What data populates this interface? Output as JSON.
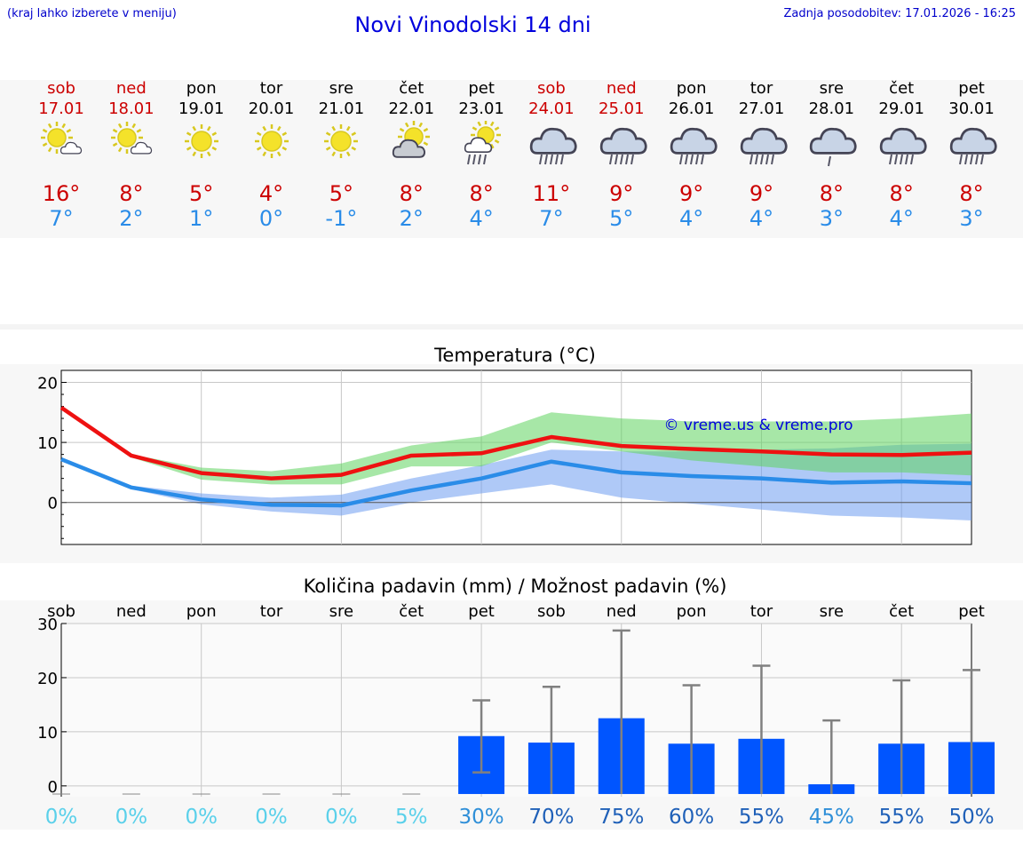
{
  "header": {
    "select_hint": "(kraj lahko izberete v meniju)",
    "title": "Novi Vinodolski 14 dni",
    "updated": "Zadnja posodobitev: 17.01.2026 - 16:25"
  },
  "days": [
    {
      "name": "sob",
      "date": "17.01",
      "weekend": true,
      "icon": "sun-partly-cloudy-icon",
      "tmax": "16°",
      "tmin": "7°"
    },
    {
      "name": "ned",
      "date": "18.01",
      "weekend": true,
      "icon": "sun-partly-cloudy-icon",
      "tmax": "8°",
      "tmin": "2°"
    },
    {
      "name": "pon",
      "date": "19.01",
      "weekend": false,
      "icon": "sun-icon",
      "tmax": "5°",
      "tmin": "1°"
    },
    {
      "name": "tor",
      "date": "20.01",
      "weekend": false,
      "icon": "sun-icon",
      "tmax": "4°",
      "tmin": "0°"
    },
    {
      "name": "sre",
      "date": "21.01",
      "weekend": false,
      "icon": "sun-icon",
      "tmax": "5°",
      "tmin": "-1°"
    },
    {
      "name": "čet",
      "date": "22.01",
      "weekend": false,
      "icon": "partly-cloudy-icon",
      "tmax": "8°",
      "tmin": "2°"
    },
    {
      "name": "pet",
      "date": "23.01",
      "weekend": false,
      "icon": "sun-rain-icon",
      "tmax": "8°",
      "tmin": "4°"
    },
    {
      "name": "sob",
      "date": "24.01",
      "weekend": true,
      "icon": "rain-cloud-icon",
      "tmax": "11°",
      "tmin": "7°"
    },
    {
      "name": "ned",
      "date": "25.01",
      "weekend": true,
      "icon": "rain-cloud-icon",
      "tmax": "9°",
      "tmin": "5°"
    },
    {
      "name": "pon",
      "date": "26.01",
      "weekend": false,
      "icon": "rain-cloud-icon",
      "tmax": "9°",
      "tmin": "4°"
    },
    {
      "name": "tor",
      "date": "27.01",
      "weekend": false,
      "icon": "rain-cloud-icon",
      "tmax": "9°",
      "tmin": "4°"
    },
    {
      "name": "sre",
      "date": "28.01",
      "weekend": false,
      "icon": "light-rain-cloud-icon",
      "tmax": "8°",
      "tmin": "3°"
    },
    {
      "name": "čet",
      "date": "29.01",
      "weekend": false,
      "icon": "rain-cloud-icon",
      "tmax": "8°",
      "tmin": "4°"
    },
    {
      "name": "pet",
      "date": "30.01",
      "weekend": false,
      "icon": "rain-cloud-icon",
      "tmax": "8°",
      "tmin": "3°"
    }
  ],
  "colors": {
    "hot": "#ee1111",
    "cold": "#2a8ce8",
    "green_band": "#5fd35f",
    "blue_band": "#6e9cf0",
    "bar": "#0055ff",
    "whisker": "#808080"
  },
  "chart_data": [
    {
      "type": "line",
      "title": "Temperatura (°C)",
      "watermark": "© vreme.us & vreme.pro",
      "ylim": [
        -7,
        22
      ],
      "yticks": [
        0,
        10,
        20
      ],
      "series": [
        {
          "name": "max",
          "values": [
            15.8,
            7.8,
            4.9,
            4.0,
            4.6,
            7.8,
            8.2,
            10.9,
            9.4,
            8.9,
            8.5,
            8.0,
            7.9,
            8.3
          ]
        },
        {
          "name": "min",
          "values": [
            7.2,
            2.5,
            0.5,
            -0.4,
            -0.5,
            2.0,
            4.0,
            6.8,
            5.0,
            4.4,
            4.0,
            3.3,
            3.5,
            3.2
          ]
        }
      ],
      "bands": [
        {
          "name": "max_range_low",
          "values": [
            15.8,
            7.5,
            3.8,
            3.0,
            3.0,
            6.0,
            6.0,
            10.0,
            8.5,
            7.0,
            6.0,
            5.0,
            5.0,
            4.5
          ]
        },
        {
          "name": "max_range_high",
          "values": [
            15.8,
            8.0,
            5.8,
            5.2,
            6.5,
            9.5,
            11.0,
            15.0,
            14.0,
            13.5,
            13.5,
            13.5,
            14.0,
            14.8
          ]
        },
        {
          "name": "min_range_low",
          "values": [
            7.2,
            2.2,
            -0.3,
            -1.5,
            -2.2,
            0.0,
            1.5,
            3.0,
            0.8,
            -0.2,
            -1.2,
            -2.2,
            -2.5,
            -3.0
          ]
        },
        {
          "name": "min_range_high",
          "values": [
            7.2,
            2.8,
            1.5,
            0.8,
            1.3,
            4.0,
            6.2,
            8.8,
            8.5,
            8.5,
            8.8,
            9.0,
            9.6,
            9.8
          ]
        }
      ]
    },
    {
      "type": "bar",
      "title": "Količina padavin (mm) / Možnost padavin (%)",
      "categories": [
        "sob",
        "ned",
        "pon",
        "tor",
        "sre",
        "čet",
        "pet",
        "sob",
        "ned",
        "pon",
        "tor",
        "sre",
        "čet",
        "pet"
      ],
      "ylim": [
        -2,
        30
      ],
      "yticks": [
        0,
        10,
        20,
        30
      ],
      "values": [
        0,
        0,
        0,
        0,
        0,
        0,
        9.2,
        8.0,
        12.5,
        7.8,
        8.7,
        0.3,
        7.8,
        8.1
      ],
      "error_low": [
        0,
        0,
        0,
        0,
        0,
        0,
        2.5,
        0,
        0,
        0,
        0,
        0,
        0,
        0
      ],
      "error_high": [
        0,
        0,
        0,
        0,
        0,
        0,
        15.8,
        18.3,
        28.7,
        18.6,
        22.2,
        12.1,
        19.5,
        21.4
      ],
      "probability": [
        "0%",
        "0%",
        "0%",
        "0%",
        "0%",
        "5%",
        "30%",
        "70%",
        "75%",
        "60%",
        "55%",
        "45%",
        "55%",
        "50%"
      ]
    }
  ]
}
